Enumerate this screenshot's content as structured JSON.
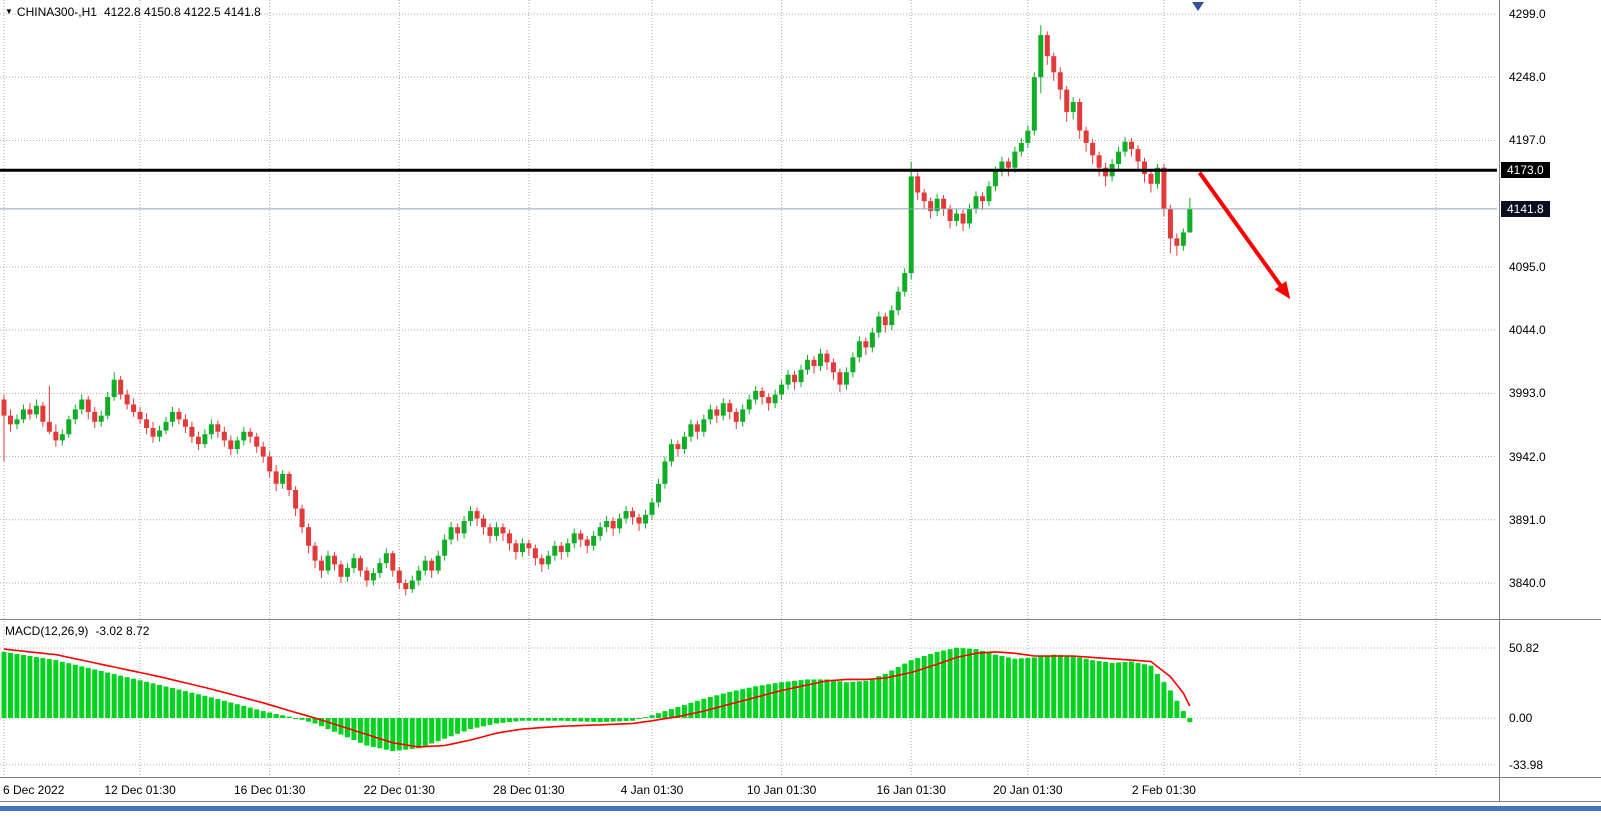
{
  "window": {
    "title_symbol": "CHINA300-,H1",
    "title_ohlc": "4122.8 4150.8 4122.5 4141.8"
  },
  "chart_data": {
    "type": "candlestick",
    "symbol": "CHINA300-",
    "timeframe": "H1",
    "price_axis": {
      "labels": [
        "4299.0",
        "4248.0",
        "4197.0",
        "4095.0",
        "4044.0",
        "3993.0",
        "3942.0",
        "3891.0",
        "3840.0"
      ],
      "black_line_price": 4173.0,
      "black_line_label": "4173.0",
      "current_price": 4141.8,
      "current_price_label": "4141.8"
    },
    "time_axis": {
      "labels": [
        {
          "index": 0,
          "label": "6 Dec 2022"
        },
        {
          "index": 21,
          "label": "12 Dec 01:30"
        },
        {
          "index": 41,
          "label": "16 Dec 01:30"
        },
        {
          "index": 61,
          "label": "22 Dec 01:30"
        },
        {
          "index": 81,
          "label": "28 Dec 01:30"
        },
        {
          "index": 100,
          "label": "4 Jan 01:30"
        },
        {
          "index": 120,
          "label": "10 Jan 01:30"
        },
        {
          "index": 140,
          "label": "16 Jan 01:30"
        },
        {
          "index": 158,
          "label": "20 Jan 01:30"
        },
        {
          "index": 179,
          "label": "2 Feb 01:30"
        }
      ],
      "extra_gridline_indices": [
        200,
        221
      ]
    },
    "candles": [
      [
        3988,
        3992,
        3938,
        3975
      ],
      [
        3975,
        3980,
        3962,
        3968
      ],
      [
        3968,
        3976,
        3964,
        3972
      ],
      [
        3972,
        3984,
        3969,
        3980
      ],
      [
        3980,
        3985,
        3972,
        3976
      ],
      [
        3976,
        3988,
        3973,
        3983
      ],
      [
        3983,
        3986,
        3966,
        3970
      ],
      [
        3970,
        3999,
        3960,
        3962
      ],
      [
        3962,
        3968,
        3950,
        3955
      ],
      [
        3955,
        3964,
        3951,
        3960
      ],
      [
        3960,
        3975,
        3957,
        3972
      ],
      [
        3972,
        3984,
        3968,
        3980
      ],
      [
        3980,
        3992,
        3976,
        3988
      ],
      [
        3988,
        3991,
        3972,
        3978
      ],
      [
        3978,
        3982,
        3965,
        3970
      ],
      [
        3970,
        3979,
        3966,
        3975
      ],
      [
        3975,
        3994,
        3972,
        3990
      ],
      [
        3990,
        4010,
        3987,
        4004
      ],
      [
        4004,
        4007,
        3988,
        3992
      ],
      [
        3992,
        3996,
        3980,
        3984
      ],
      [
        3984,
        3989,
        3974,
        3978
      ],
      [
        3978,
        3982,
        3968,
        3972
      ],
      [
        3972,
        3977,
        3960,
        3965
      ],
      [
        3965,
        3970,
        3953,
        3958
      ],
      [
        3958,
        3967,
        3954,
        3963
      ],
      [
        3963,
        3974,
        3960,
        3970
      ],
      [
        3970,
        3982,
        3966,
        3978
      ],
      [
        3978,
        3981,
        3968,
        3972
      ],
      [
        3972,
        3976,
        3961,
        3966
      ],
      [
        3966,
        3970,
        3953,
        3958
      ],
      [
        3958,
        3962,
        3947,
        3952
      ],
      [
        3952,
        3964,
        3949,
        3960
      ],
      [
        3960,
        3972,
        3956,
        3968
      ],
      [
        3968,
        3971,
        3957,
        3962
      ],
      [
        3962,
        3966,
        3950,
        3955
      ],
      [
        3955,
        3959,
        3943,
        3948
      ],
      [
        3948,
        3958,
        3944,
        3955
      ],
      [
        3955,
        3966,
        3951,
        3962
      ],
      [
        3962,
        3965,
        3953,
        3958
      ],
      [
        3958,
        3961,
        3945,
        3950
      ],
      [
        3950,
        3954,
        3937,
        3942
      ],
      [
        3942,
        3946,
        3925,
        3930
      ],
      [
        3930,
        3935,
        3914,
        3920
      ],
      [
        3920,
        3931,
        3916,
        3928
      ],
      [
        3928,
        3930,
        3910,
        3915
      ],
      [
        3915,
        3918,
        3894,
        3900
      ],
      [
        3900,
        3903,
        3880,
        3885
      ],
      [
        3885,
        3888,
        3864,
        3870
      ],
      [
        3870,
        3873,
        3852,
        3858
      ],
      [
        3858,
        3862,
        3844,
        3850
      ],
      [
        3850,
        3866,
        3847,
        3862
      ],
      [
        3862,
        3865,
        3850,
        3855
      ],
      [
        3855,
        3858,
        3840,
        3845
      ],
      [
        3845,
        3856,
        3841,
        3852
      ],
      [
        3852,
        3864,
        3848,
        3860
      ],
      [
        3860,
        3862,
        3845,
        3850
      ],
      [
        3850,
        3853,
        3837,
        3842
      ],
      [
        3842,
        3852,
        3838,
        3848
      ],
      [
        3848,
        3860,
        3844,
        3856
      ],
      [
        3856,
        3868,
        3852,
        3864
      ],
      [
        3864,
        3866,
        3845,
        3850
      ],
      [
        3850,
        3853,
        3835,
        3840
      ],
      [
        3840,
        3843,
        3830,
        3835
      ],
      [
        3835,
        3846,
        3832,
        3842
      ],
      [
        3842,
        3854,
        3838,
        3850
      ],
      [
        3850,
        3862,
        3846,
        3858
      ],
      [
        3858,
        3860,
        3844,
        3850
      ],
      [
        3850,
        3866,
        3847,
        3862
      ],
      [
        3862,
        3879,
        3858,
        3875
      ],
      [
        3875,
        3889,
        3871,
        3885
      ],
      [
        3885,
        3888,
        3874,
        3880
      ],
      [
        3880,
        3894,
        3876,
        3890
      ],
      [
        3890,
        3902,
        3886,
        3898
      ],
      [
        3898,
        3901,
        3886,
        3892
      ],
      [
        3892,
        3895,
        3879,
        3885
      ],
      [
        3885,
        3888,
        3872,
        3878
      ],
      [
        3878,
        3889,
        3874,
        3885
      ],
      [
        3885,
        3888,
        3874,
        3880
      ],
      [
        3880,
        3883,
        3866,
        3872
      ],
      [
        3872,
        3875,
        3859,
        3865
      ],
      [
        3865,
        3876,
        3861,
        3872
      ],
      [
        3872,
        3875,
        3862,
        3868
      ],
      [
        3868,
        3871,
        3854,
        3860
      ],
      [
        3860,
        3863,
        3849,
        3855
      ],
      [
        3855,
        3866,
        3851,
        3862
      ],
      [
        3862,
        3874,
        3858,
        3870
      ],
      [
        3870,
        3873,
        3859,
        3865
      ],
      [
        3865,
        3876,
        3861,
        3872
      ],
      [
        3872,
        3884,
        3868,
        3880
      ],
      [
        3880,
        3883,
        3869,
        3875
      ],
      [
        3875,
        3878,
        3864,
        3870
      ],
      [
        3870,
        3882,
        3866,
        3878
      ],
      [
        3878,
        3889,
        3874,
        3885
      ],
      [
        3885,
        3894,
        3881,
        3890
      ],
      [
        3890,
        3893,
        3878,
        3884
      ],
      [
        3884,
        3896,
        3880,
        3892
      ],
      [
        3892,
        3902,
        3888,
        3898
      ],
      [
        3898,
        3901,
        3887,
        3893
      ],
      [
        3893,
        3896,
        3882,
        3888
      ],
      [
        3888,
        3899,
        3884,
        3895
      ],
      [
        3895,
        3909,
        3891,
        3905
      ],
      [
        3905,
        3924,
        3901,
        3920
      ],
      [
        3920,
        3942,
        3916,
        3938
      ],
      [
        3938,
        3956,
        3934,
        3952
      ],
      [
        3952,
        3955,
        3942,
        3948
      ],
      [
        3948,
        3962,
        3944,
        3958
      ],
      [
        3958,
        3972,
        3954,
        3968
      ],
      [
        3968,
        3971,
        3956,
        3962
      ],
      [
        3962,
        3976,
        3958,
        3972
      ],
      [
        3972,
        3984,
        3968,
        3980
      ],
      [
        3980,
        3983,
        3969,
        3975
      ],
      [
        3975,
        3989,
        3971,
        3985
      ],
      [
        3985,
        3988,
        3972,
        3978
      ],
      [
        3978,
        3981,
        3964,
        3970
      ],
      [
        3970,
        3984,
        3966,
        3980
      ],
      [
        3980,
        3992,
        3976,
        3988
      ],
      [
        3988,
        3999,
        3984,
        3995
      ],
      [
        3995,
        3998,
        3984,
        3990
      ],
      [
        3990,
        3993,
        3979,
        3985
      ],
      [
        3985,
        3996,
        3981,
        3992
      ],
      [
        3992,
        4004,
        3988,
        4000
      ],
      [
        4000,
        4012,
        3996,
        4008
      ],
      [
        4008,
        4011,
        3996,
        4002
      ],
      [
        4002,
        4016,
        3998,
        4012
      ],
      [
        4012,
        4024,
        4008,
        4020
      ],
      [
        4020,
        4023,
        4009,
        4015
      ],
      [
        4015,
        4029,
        4011,
        4025
      ],
      [
        4025,
        4028,
        4012,
        4018
      ],
      [
        4018,
        4021,
        4004,
        4010
      ],
      [
        4010,
        4013,
        3994,
        4000
      ],
      [
        4000,
        4014,
        3996,
        4010
      ],
      [
        4010,
        4026,
        4006,
        4022
      ],
      [
        4022,
        4039,
        4018,
        4035
      ],
      [
        4035,
        4038,
        4024,
        4030
      ],
      [
        4030,
        4046,
        4026,
        4042
      ],
      [
        4042,
        4059,
        4038,
        4055
      ],
      [
        4055,
        4058,
        4042,
        4048
      ],
      [
        4048,
        4064,
        4044,
        4060
      ],
      [
        4060,
        4079,
        4056,
        4075
      ],
      [
        4075,
        4094,
        4071,
        4090
      ],
      [
        4090,
        4180,
        4085,
        4168
      ],
      [
        4168,
        4171,
        4149,
        4155
      ],
      [
        4155,
        4158,
        4142,
        4148
      ],
      [
        4148,
        4151,
        4134,
        4140
      ],
      [
        4140,
        4154,
        4136,
        4150
      ],
      [
        4150,
        4153,
        4136,
        4142
      ],
      [
        4142,
        4145,
        4126,
        4132
      ],
      [
        4132,
        4142,
        4128,
        4138
      ],
      [
        4138,
        4141,
        4124,
        4130
      ],
      [
        4130,
        4146,
        4126,
        4142
      ],
      [
        4142,
        4156,
        4138,
        4152
      ],
      [
        4152,
        4155,
        4141,
        4148
      ],
      [
        4148,
        4164,
        4144,
        4160
      ],
      [
        4160,
        4176,
        4156,
        4172
      ],
      [
        4172,
        4184,
        4168,
        4180
      ],
      [
        4180,
        4183,
        4168,
        4175
      ],
      [
        4175,
        4192,
        4171,
        4188
      ],
      [
        4188,
        4199,
        4184,
        4195
      ],
      [
        4195,
        4209,
        4191,
        4205
      ],
      [
        4205,
        4252,
        4201,
        4248
      ],
      [
        4248,
        4290,
        4235,
        4282
      ],
      [
        4282,
        4285,
        4258,
        4265
      ],
      [
        4265,
        4268,
        4245,
        4252
      ],
      [
        4252,
        4256,
        4230,
        4238
      ],
      [
        4238,
        4241,
        4212,
        4220
      ],
      [
        4220,
        4232,
        4214,
        4228
      ],
      [
        4228,
        4231,
        4198,
        4205
      ],
      [
        4205,
        4208,
        4188,
        4195
      ],
      [
        4195,
        4198,
        4178,
        4185
      ],
      [
        4185,
        4188,
        4168,
        4175
      ],
      [
        4175,
        4179,
        4160,
        4168
      ],
      [
        4168,
        4182,
        4164,
        4178
      ],
      [
        4178,
        4192,
        4174,
        4188
      ],
      [
        4188,
        4200,
        4184,
        4196
      ],
      [
        4196,
        4199,
        4184,
        4190
      ],
      [
        4190,
        4193,
        4174,
        4180
      ],
      [
        4180,
        4183,
        4163,
        4170
      ],
      [
        4170,
        4173,
        4155,
        4162
      ],
      [
        4162,
        4178,
        4158,
        4175
      ],
      [
        4175,
        4178,
        4136,
        4142
      ],
      [
        4142,
        4145,
        4106,
        4118
      ],
      [
        4118,
        4122,
        4104,
        4112
      ],
      [
        4112,
        4126,
        4108,
        4122.8
      ],
      [
        4122.8,
        4150.8,
        4122.5,
        4141.8
      ]
    ],
    "indicator": {
      "name": "MACD(12,26,9)",
      "values_text": "-3.02 8.72",
      "levels": [
        50.82,
        0,
        -33.98
      ],
      "level_labels": [
        "50.82",
        "0.00",
        "-33.98"
      ],
      "keyframes": [
        [
          0,
          48,
          50
        ],
        [
          8,
          42,
          46
        ],
        [
          16,
          33,
          38
        ],
        [
          24,
          24,
          30
        ],
        [
          32,
          15,
          21
        ],
        [
          40,
          5,
          11
        ],
        [
          45,
          0,
          4
        ],
        [
          48,
          -4,
          0
        ],
        [
          52,
          -12,
          -6
        ],
        [
          56,
          -20,
          -12
        ],
        [
          60,
          -24,
          -18
        ],
        [
          64,
          -22,
          -21
        ],
        [
          68,
          -15,
          -20
        ],
        [
          72,
          -8,
          -16
        ],
        [
          76,
          -4,
          -11
        ],
        [
          80,
          -2,
          -8
        ],
        [
          86,
          -2,
          -6
        ],
        [
          92,
          -3,
          -5
        ],
        [
          97,
          -2,
          -4
        ],
        [
          100,
          2,
          -2
        ],
        [
          104,
          8,
          1
        ],
        [
          108,
          14,
          5
        ],
        [
          112,
          19,
          10
        ],
        [
          116,
          23,
          15
        ],
        [
          120,
          26,
          20
        ],
        [
          124,
          28,
          24
        ],
        [
          127,
          28,
          27
        ],
        [
          130,
          26,
          28
        ],
        [
          133,
          27,
          28
        ],
        [
          136,
          32,
          29
        ],
        [
          140,
          42,
          33
        ],
        [
          144,
          48,
          39
        ],
        [
          147,
          51,
          44
        ],
        [
          150,
          50,
          47
        ],
        [
          153,
          46,
          48
        ],
        [
          156,
          43,
          47
        ],
        [
          159,
          44,
          45
        ],
        [
          162,
          46,
          45
        ],
        [
          165,
          45,
          45
        ],
        [
          168,
          42,
          44
        ],
        [
          171,
          40,
          43
        ],
        [
          174,
          41,
          42
        ],
        [
          177,
          38,
          41
        ],
        [
          180,
          20,
          30
        ],
        [
          182,
          5,
          18
        ],
        [
          183,
          -3,
          8.7
        ]
      ]
    },
    "annotations": {
      "arrow": {
        "from_index": 184.5,
        "from_price": 4171,
        "to_index": 198.5,
        "to_price": 4069
      }
    },
    "colors": {
      "bull": "#0fae26",
      "bear": "#e23a3a",
      "macd_bar": "#00d41e",
      "signal": "#ff0000",
      "grid": "#adadad",
      "hline": "#000000",
      "bid_line": "#94a3b8",
      "arrow": "#ff0000",
      "badge_black": "#000000",
      "badge_bid": "#0d0d21",
      "blue_strip": "#4472c4"
    }
  }
}
